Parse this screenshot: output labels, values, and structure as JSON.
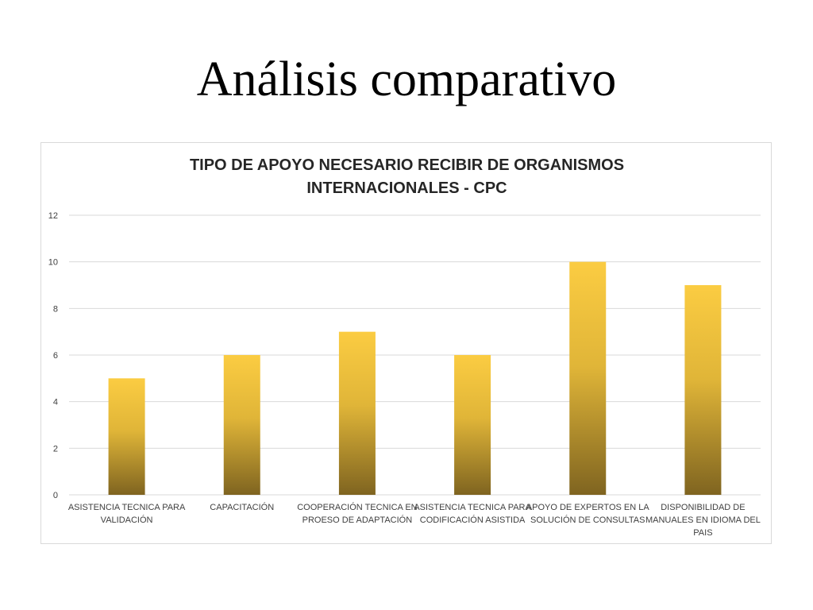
{
  "slide": {
    "title": "Análisis comparativo"
  },
  "chart_data": {
    "type": "bar",
    "title_lines": [
      "TIPO DE APOYO NECESARIO RECIBIR DE ORGANISMOS",
      "INTERNACIONALES - CPC"
    ],
    "categories": [
      [
        "ASISTENCIA TECNICA PARA",
        "VALIDACIÓN"
      ],
      [
        "CAPACITACIÓN"
      ],
      [
        "COOPERACIÓN TECNICA EN",
        "PROESO DE ADAPTACIÓN"
      ],
      [
        "ASISTENCIA TECNICA PARA",
        "CODIFICACIÓN ASISTIDA"
      ],
      [
        "APOYO DE EXPERTOS EN LA",
        "SOLUCIÓN DE CONSULTAS"
      ],
      [
        "DISPONIBILIDAD DE",
        "MANUALES EN IDIOMA DEL",
        "PAIS"
      ]
    ],
    "values": [
      5,
      6,
      7,
      6,
      10,
      9
    ],
    "ylim": [
      0,
      12
    ],
    "yticks": [
      0,
      2,
      4,
      6,
      8,
      10,
      12
    ],
    "xlabel": "",
    "ylabel": "",
    "grid": true,
    "legend": "none",
    "colors": {
      "bar_top": "#fbcc42",
      "bar_mid": "#e0b538",
      "bar_bottom": "#7f6420",
      "grid": "#d9d9d9",
      "axis_text": "#404040"
    }
  }
}
